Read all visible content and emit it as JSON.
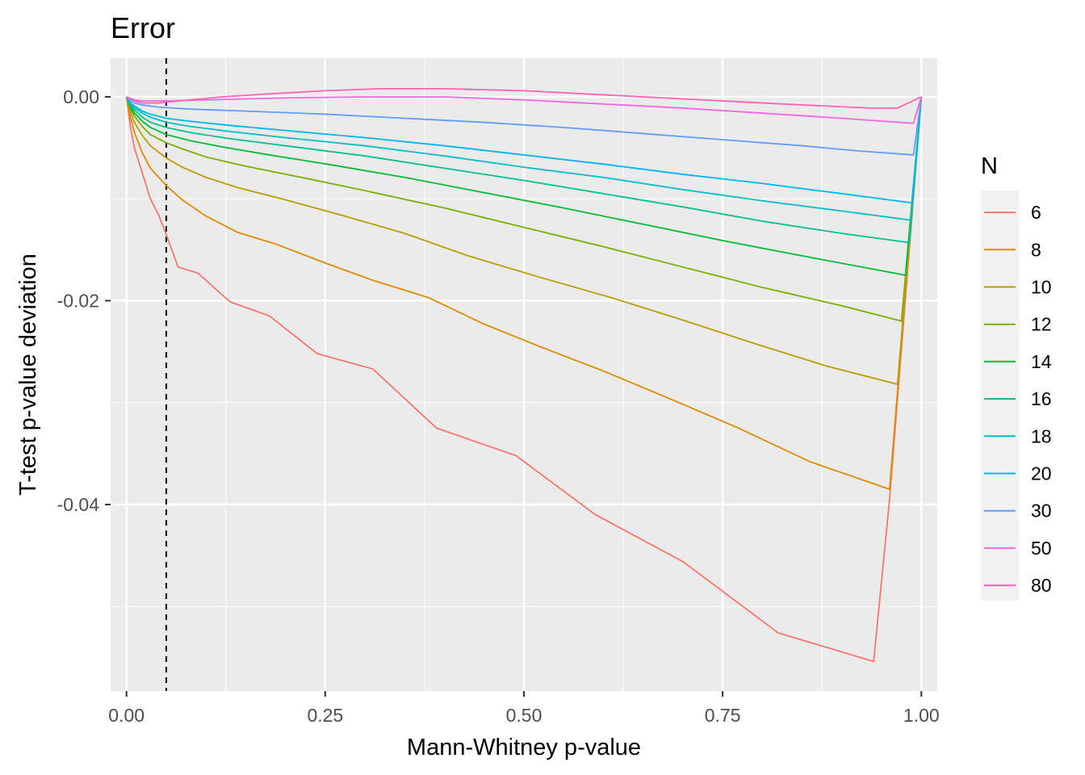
{
  "chart_data": {
    "type": "line",
    "title": "Error",
    "xlabel": "Mann-Whitney p-value",
    "ylabel": "T-test p-value deviation",
    "xlim": [
      -0.02,
      1.02
    ],
    "ylim": [
      -0.0583,
      0.0038
    ],
    "x_ticks": [
      0.0,
      0.25,
      0.5,
      0.75,
      1.0
    ],
    "x_tick_labels": [
      "0.00",
      "0.25",
      "0.50",
      "0.75",
      "1.00"
    ],
    "y_ticks": [
      0.0,
      -0.02,
      -0.04
    ],
    "y_tick_labels": [
      "0.00",
      "-0.02",
      "-0.04"
    ],
    "grid": true,
    "legend": {
      "title": "N",
      "position": "right"
    },
    "reference_line": {
      "orientation": "vertical",
      "x": 0.05,
      "style": "dashed"
    },
    "series": [
      {
        "name": "6",
        "color": "#F8766D",
        "points": [
          [
            0,
            0
          ],
          [
            0.005,
            -0.003
          ],
          [
            0.01,
            -0.005
          ],
          [
            0.02,
            -0.0075
          ],
          [
            0.03,
            -0.01
          ],
          [
            0.04,
            -0.0115
          ],
          [
            0.05,
            -0.0135
          ],
          [
            0.065,
            -0.0167
          ],
          [
            0.09,
            -0.0173
          ],
          [
            0.13,
            -0.0201
          ],
          [
            0.18,
            -0.0215
          ],
          [
            0.24,
            -0.0252
          ],
          [
            0.31,
            -0.0267
          ],
          [
            0.39,
            -0.0325
          ],
          [
            0.49,
            -0.0352
          ],
          [
            0.59,
            -0.041
          ],
          [
            0.7,
            -0.0456
          ],
          [
            0.82,
            -0.0526
          ],
          [
            0.94,
            -0.0554
          ],
          [
            0.96,
            -0.0395
          ],
          [
            1.0,
            0
          ]
        ]
      },
      {
        "name": "8",
        "color": "#DE8C00",
        "points": [
          [
            0,
            0
          ],
          [
            0.005,
            -0.002
          ],
          [
            0.01,
            -0.0035
          ],
          [
            0.02,
            -0.0055
          ],
          [
            0.03,
            -0.007
          ],
          [
            0.05,
            -0.0087
          ],
          [
            0.07,
            -0.0101
          ],
          [
            0.1,
            -0.0117
          ],
          [
            0.14,
            -0.0133
          ],
          [
            0.19,
            -0.0145
          ],
          [
            0.25,
            -0.0163
          ],
          [
            0.31,
            -0.018
          ],
          [
            0.38,
            -0.0197
          ],
          [
            0.45,
            -0.0223
          ],
          [
            0.52,
            -0.0245
          ],
          [
            0.6,
            -0.0269
          ],
          [
            0.68,
            -0.0295
          ],
          [
            0.77,
            -0.0325
          ],
          [
            0.86,
            -0.0358
          ],
          [
            0.96,
            -0.0385
          ],
          [
            1.0,
            0
          ]
        ]
      },
      {
        "name": "10",
        "color": "#B79F00",
        "points": [
          [
            0,
            0
          ],
          [
            0.005,
            -0.0015
          ],
          [
            0.01,
            -0.0025
          ],
          [
            0.02,
            -0.0038
          ],
          [
            0.03,
            -0.0048
          ],
          [
            0.05,
            -0.006
          ],
          [
            0.07,
            -0.0069
          ],
          [
            0.1,
            -0.0079
          ],
          [
            0.14,
            -0.0089
          ],
          [
            0.2,
            -0.0101
          ],
          [
            0.27,
            -0.0116
          ],
          [
            0.35,
            -0.0134
          ],
          [
            0.43,
            -0.0156
          ],
          [
            0.52,
            -0.0177
          ],
          [
            0.61,
            -0.0197
          ],
          [
            0.7,
            -0.0219
          ],
          [
            0.79,
            -0.0242
          ],
          [
            0.88,
            -0.0264
          ],
          [
            0.97,
            -0.0282
          ],
          [
            1.0,
            0
          ]
        ]
      },
      {
        "name": "12",
        "color": "#7CAE00",
        "points": [
          [
            0,
            0
          ],
          [
            0.005,
            -0.0012
          ],
          [
            0.01,
            -0.0019
          ],
          [
            0.02,
            -0.0029
          ],
          [
            0.03,
            -0.0037
          ],
          [
            0.05,
            -0.0045
          ],
          [
            0.07,
            -0.0051
          ],
          [
            0.1,
            -0.0059
          ],
          [
            0.15,
            -0.0068
          ],
          [
            0.22,
            -0.0079
          ],
          [
            0.3,
            -0.0092
          ],
          [
            0.4,
            -0.0109
          ],
          [
            0.5,
            -0.0128
          ],
          [
            0.6,
            -0.0147
          ],
          [
            0.7,
            -0.0167
          ],
          [
            0.8,
            -0.0187
          ],
          [
            0.9,
            -0.0205
          ],
          [
            0.975,
            -0.022
          ],
          [
            1.0,
            0
          ]
        ]
      },
      {
        "name": "14",
        "color": "#00BA38",
        "points": [
          [
            0,
            0
          ],
          [
            0.005,
            -0.001
          ],
          [
            0.01,
            -0.0016
          ],
          [
            0.02,
            -0.0024
          ],
          [
            0.03,
            -0.003
          ],
          [
            0.05,
            -0.0037
          ],
          [
            0.08,
            -0.0043
          ],
          [
            0.12,
            -0.0049
          ],
          [
            0.18,
            -0.0057
          ],
          [
            0.26,
            -0.0067
          ],
          [
            0.35,
            -0.0079
          ],
          [
            0.45,
            -0.0094
          ],
          [
            0.55,
            -0.0109
          ],
          [
            0.65,
            -0.0125
          ],
          [
            0.75,
            -0.0141
          ],
          [
            0.85,
            -0.0156
          ],
          [
            0.98,
            -0.0175
          ],
          [
            1.0,
            0
          ]
        ]
      },
      {
        "name": "16",
        "color": "#00C08B",
        "points": [
          [
            0,
            0
          ],
          [
            0.005,
            -0.0008
          ],
          [
            0.01,
            -0.0013
          ],
          [
            0.02,
            -0.002
          ],
          [
            0.03,
            -0.0025
          ],
          [
            0.05,
            -0.003
          ],
          [
            0.08,
            -0.0035
          ],
          [
            0.13,
            -0.0041
          ],
          [
            0.2,
            -0.0048
          ],
          [
            0.3,
            -0.0058
          ],
          [
            0.4,
            -0.007
          ],
          [
            0.5,
            -0.0082
          ],
          [
            0.6,
            -0.0095
          ],
          [
            0.7,
            -0.0108
          ],
          [
            0.8,
            -0.0122
          ],
          [
            0.9,
            -0.0134
          ],
          [
            0.985,
            -0.0143
          ],
          [
            1.0,
            0
          ]
        ]
      },
      {
        "name": "18",
        "color": "#00BFC4",
        "points": [
          [
            0,
            0
          ],
          [
            0.005,
            -0.0007
          ],
          [
            0.01,
            -0.0011
          ],
          [
            0.02,
            -0.0016
          ],
          [
            0.03,
            -0.002
          ],
          [
            0.05,
            -0.0025
          ],
          [
            0.08,
            -0.0029
          ],
          [
            0.13,
            -0.0034
          ],
          [
            0.2,
            -0.004
          ],
          [
            0.3,
            -0.0048
          ],
          [
            0.4,
            -0.0058
          ],
          [
            0.5,
            -0.0069
          ],
          [
            0.6,
            -0.0079
          ],
          [
            0.7,
            -0.0091
          ],
          [
            0.8,
            -0.0102
          ],
          [
            0.9,
            -0.0112
          ],
          [
            0.987,
            -0.0121
          ],
          [
            1.0,
            0
          ]
        ]
      },
      {
        "name": "20",
        "color": "#00B4F0",
        "points": [
          [
            0,
            0
          ],
          [
            0.005,
            -0.0006
          ],
          [
            0.01,
            -0.0009
          ],
          [
            0.02,
            -0.0014
          ],
          [
            0.03,
            -0.0017
          ],
          [
            0.05,
            -0.0021
          ],
          [
            0.08,
            -0.0024
          ],
          [
            0.13,
            -0.0028
          ],
          [
            0.2,
            -0.0033
          ],
          [
            0.3,
            -0.004
          ],
          [
            0.4,
            -0.0048
          ],
          [
            0.5,
            -0.0057
          ],
          [
            0.6,
            -0.0066
          ],
          [
            0.7,
            -0.0076
          ],
          [
            0.8,
            -0.0085
          ],
          [
            0.9,
            -0.0095
          ],
          [
            0.988,
            -0.0104
          ],
          [
            1.0,
            0
          ]
        ]
      },
      {
        "name": "30",
        "color": "#619CFF",
        "points": [
          [
            0,
            0
          ],
          [
            0.005,
            -0.0004
          ],
          [
            0.01,
            -0.0006
          ],
          [
            0.02,
            -0.0008
          ],
          [
            0.04,
            -0.001
          ],
          [
            0.08,
            -0.0012
          ],
          [
            0.15,
            -0.0014
          ],
          [
            0.25,
            -0.0017
          ],
          [
            0.35,
            -0.0021
          ],
          [
            0.45,
            -0.0025
          ],
          [
            0.55,
            -0.003
          ],
          [
            0.65,
            -0.0036
          ],
          [
            0.75,
            -0.0042
          ],
          [
            0.85,
            -0.0048
          ],
          [
            0.92,
            -0.0053
          ],
          [
            0.99,
            -0.0057
          ],
          [
            1.0,
            0
          ]
        ]
      },
      {
        "name": "50",
        "color": "#F564E3",
        "points": [
          [
            0,
            0
          ],
          [
            0.01,
            -0.0003
          ],
          [
            0.02,
            -0.0004
          ],
          [
            0.05,
            -0.0004
          ],
          [
            0.1,
            -0.0003
          ],
          [
            0.15,
            -0.0002
          ],
          [
            0.2,
            -0.0001
          ],
          [
            0.3,
            0
          ],
          [
            0.4,
            0
          ],
          [
            0.5,
            -0.0003
          ],
          [
            0.6,
            -0.0007
          ],
          [
            0.7,
            -0.0011
          ],
          [
            0.8,
            -0.0016
          ],
          [
            0.9,
            -0.0021
          ],
          [
            0.99,
            -0.0026
          ],
          [
            1.0,
            0
          ]
        ]
      },
      {
        "name": "80",
        "color": "#FF64B0",
        "points": [
          [
            0,
            0
          ],
          [
            0.01,
            -0.0004
          ],
          [
            0.02,
            -0.0006
          ],
          [
            0.04,
            -0.0006
          ],
          [
            0.08,
            -0.0003
          ],
          [
            0.12,
            0
          ],
          [
            0.18,
            0.0003
          ],
          [
            0.25,
            0.0006
          ],
          [
            0.32,
            0.0008
          ],
          [
            0.4,
            0.0008
          ],
          [
            0.5,
            0.0006
          ],
          [
            0.6,
            0.0002
          ],
          [
            0.7,
            -0.0002
          ],
          [
            0.8,
            -0.0006
          ],
          [
            0.88,
            -0.0009
          ],
          [
            0.935,
            -0.0011
          ],
          [
            0.97,
            -0.0011
          ],
          [
            1.0,
            0
          ]
        ]
      }
    ]
  }
}
